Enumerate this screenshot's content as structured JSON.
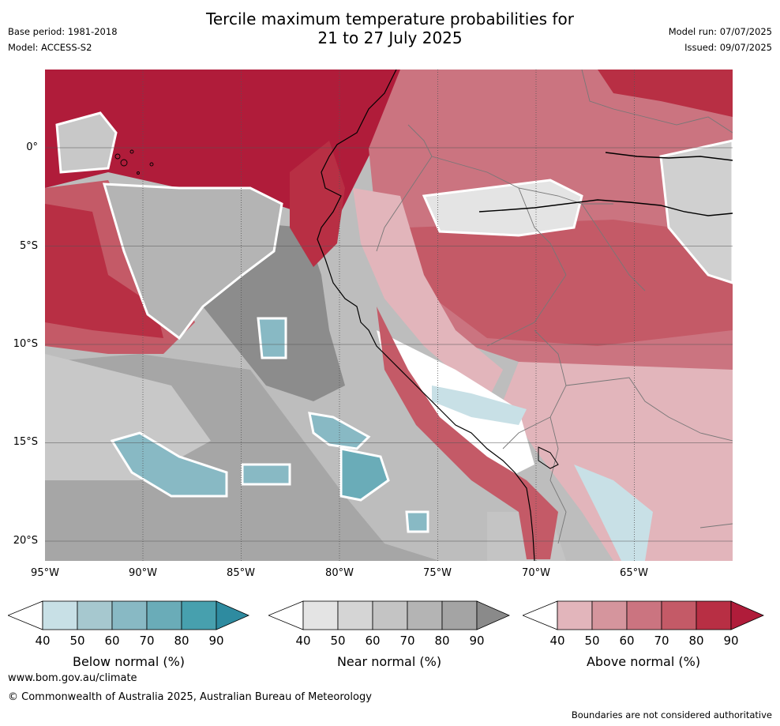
{
  "title_line1": "Tercile maximum temperature probabilities for",
  "title_line2": "21 to 27 July 2025",
  "base_period": "Base period: 1981-2018",
  "model": "Model: ACCESS-S2",
  "model_run": "Model run: 07/07/2025",
  "issued": "Issued: 09/07/2025",
  "lat_labels": [
    "0°",
    "5°S",
    "10°S",
    "15°S",
    "20°S"
  ],
  "lon_labels": [
    "95°W",
    "90°W",
    "85°W",
    "80°W",
    "75°W",
    "70°W",
    "65°W"
  ],
  "legends": [
    {
      "label": "Below normal (%)",
      "ticks": [
        "40",
        "50",
        "60",
        "70",
        "80",
        "90"
      ],
      "colors": [
        "#c8e0e6",
        "#a6c8cf",
        "#88b9c4",
        "#6aacb8",
        "#47a0ae",
        "#2e8ba0"
      ]
    },
    {
      "label": "Near normal (%)",
      "ticks": [
        "40",
        "50",
        "60",
        "70",
        "80",
        "90"
      ],
      "colors": [
        "#e4e4e4",
        "#d5d5d5",
        "#c4c4c4",
        "#b4b4b4",
        "#a4a4a4",
        "#8a8a8a"
      ]
    },
    {
      "label": "Above normal (%)",
      "ticks": [
        "40",
        "50",
        "60",
        "70",
        "80",
        "90"
      ],
      "colors": [
        "#e2b5bb",
        "#d5959d",
        "#cb7480",
        "#c45a67",
        "#b82f44",
        "#b01c3a"
      ]
    }
  ],
  "website": "www.bom.gov.au/climate",
  "copyright": "© Commonwealth of Australia 2025, Australian Bureau of Meteorology",
  "disclaimer": "Boundaries are not considered authoritative"
}
